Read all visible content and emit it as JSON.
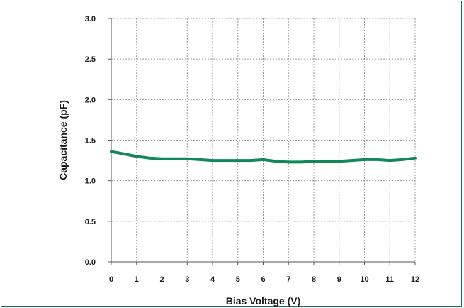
{
  "colors": {
    "frame": "#0a7a55",
    "series": "#12875a",
    "grid": "#9a9a9a",
    "axis": "#555555",
    "text": "#1a1a1a"
  },
  "chart_data": {
    "type": "line",
    "title": "",
    "xlabel": "Bias Voltage (V)",
    "ylabel": "Capacitance (pF)",
    "xlim": [
      0,
      12
    ],
    "ylim": [
      0,
      3.0
    ],
    "grid": true,
    "xticks": [
      0,
      1,
      2,
      3,
      4,
      5,
      6,
      7,
      8,
      9,
      10,
      11,
      12
    ],
    "xtick_labels": [
      "0",
      "1",
      "2",
      "3",
      "4",
      "5",
      "6",
      "7",
      "8",
      "9",
      "10",
      "11",
      "12"
    ],
    "yticks": [
      0,
      0.5,
      1.0,
      1.5,
      2.0,
      2.5,
      3.0
    ],
    "ytick_labels": [
      "0.0",
      "0.5",
      "1.0",
      "1.5",
      "2.0",
      "2.5",
      "3.0"
    ],
    "series": [
      {
        "x": [
          0,
          0.5,
          1,
          1.5,
          2,
          2.5,
          3,
          3.5,
          4,
          4.5,
          5,
          5.5,
          6,
          6.5,
          7,
          7.5,
          8,
          8.5,
          9,
          9.5,
          10,
          10.5,
          11,
          11.5,
          12
        ],
        "y": [
          1.36,
          1.33,
          1.3,
          1.28,
          1.27,
          1.27,
          1.27,
          1.26,
          1.25,
          1.25,
          1.25,
          1.25,
          1.26,
          1.24,
          1.23,
          1.23,
          1.24,
          1.24,
          1.24,
          1.25,
          1.26,
          1.26,
          1.25,
          1.26,
          1.28
        ]
      }
    ]
  }
}
